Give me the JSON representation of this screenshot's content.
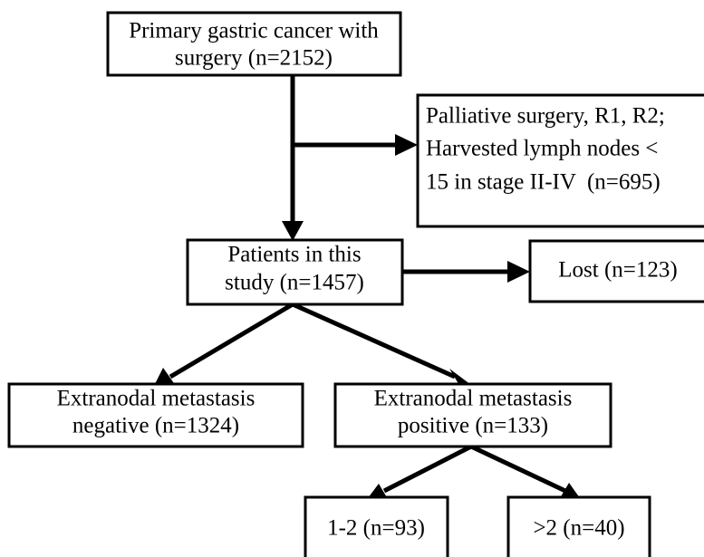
{
  "nodes": [
    {
      "lines": [
        "Primary gastric cancer with",
        "surgery (n=2152)"
      ]
    },
    {
      "lines": [
        "Palliative surgery, R1, R2;",
        "Harvested lymph nodes <",
        "15 in stage II-IV  (n=695)"
      ]
    },
    {
      "lines": [
        "Patients in this",
        "study (n=1457)"
      ]
    },
    {
      "lines": [
        "Lost (n=123)"
      ]
    },
    {
      "lines": [
        "Extranodal metastasis",
        "negative (n=1324)"
      ]
    },
    {
      "lines": [
        "Extranodal metastasis",
        "positive (n=133)"
      ]
    },
    {
      "lines": [
        "1-2 (n=93)"
      ]
    },
    {
      "lines": [
        ">2 (n=40)"
      ]
    }
  ]
}
